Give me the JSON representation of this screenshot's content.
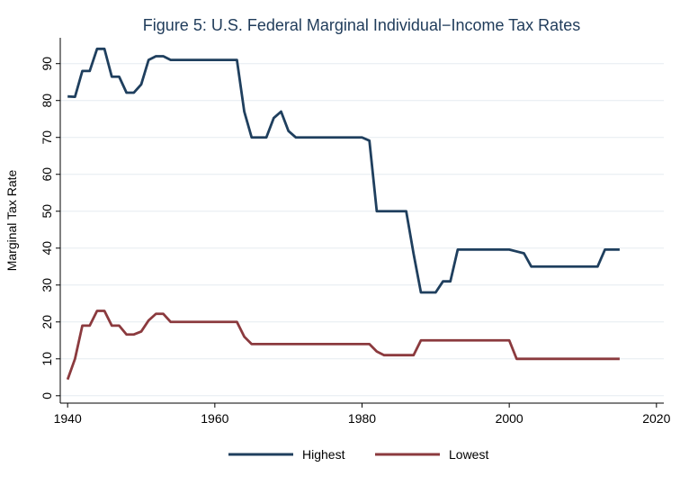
{
  "chart_data": {
    "type": "line",
    "title": "Figure 5: U.S. Federal Marginal Individual−Income Tax Rates",
    "xlabel": "",
    "ylabel": "Marginal Tax Rate",
    "xlim": [
      1939,
      2021
    ],
    "ylim": [
      -2,
      97
    ],
    "xticks": [
      1940,
      1960,
      1980,
      2000,
      2020
    ],
    "yticks": [
      0,
      10,
      20,
      30,
      40,
      50,
      60,
      70,
      80,
      90
    ],
    "grid": "horizontal",
    "legend_position": "bottom",
    "series": [
      {
        "name": "Highest",
        "color": "#1f3f5e",
        "points": [
          [
            1940,
            81.1
          ],
          [
            1941,
            81
          ],
          [
            1942,
            88
          ],
          [
            1943,
            88
          ],
          [
            1944,
            94
          ],
          [
            1945,
            94
          ],
          [
            1946,
            86.45
          ],
          [
            1947,
            86.45
          ],
          [
            1948,
            82.13
          ],
          [
            1949,
            82.13
          ],
          [
            1950,
            84.36
          ],
          [
            1951,
            91
          ],
          [
            1952,
            92
          ],
          [
            1953,
            92
          ],
          [
            1954,
            91
          ],
          [
            1963,
            91
          ],
          [
            1964,
            77
          ],
          [
            1965,
            70
          ],
          [
            1967,
            70
          ],
          [
            1968,
            75.25
          ],
          [
            1969,
            77
          ],
          [
            1970,
            71.75
          ],
          [
            1971,
            70
          ],
          [
            1980,
            70
          ],
          [
            1981,
            69.13
          ],
          [
            1982,
            50
          ],
          [
            1986,
            50
          ],
          [
            1987,
            38.5
          ],
          [
            1988,
            28
          ],
          [
            1990,
            28
          ],
          [
            1991,
            31
          ],
          [
            1992,
            31
          ],
          [
            1993,
            39.6
          ],
          [
            2000,
            39.6
          ],
          [
            2001,
            39.1
          ],
          [
            2002,
            38.6
          ],
          [
            2003,
            35
          ],
          [
            2012,
            35
          ],
          [
            2013,
            39.6
          ],
          [
            2015,
            39.6
          ]
        ]
      },
      {
        "name": "Lowest",
        "color": "#8b3a3e",
        "points": [
          [
            1940,
            4.4
          ],
          [
            1941,
            10
          ],
          [
            1942,
            19
          ],
          [
            1943,
            19
          ],
          [
            1944,
            23
          ],
          [
            1945,
            23
          ],
          [
            1946,
            19
          ],
          [
            1947,
            19
          ],
          [
            1948,
            16.6
          ],
          [
            1949,
            16.6
          ],
          [
            1950,
            17.4
          ],
          [
            1951,
            20.4
          ],
          [
            1952,
            22.2
          ],
          [
            1953,
            22.2
          ],
          [
            1954,
            20
          ],
          [
            1963,
            20
          ],
          [
            1964,
            16
          ],
          [
            1965,
            14
          ],
          [
            1981,
            14
          ],
          [
            1982,
            12
          ],
          [
            1983,
            11
          ],
          [
            1987,
            11
          ],
          [
            1988,
            15
          ],
          [
            2000,
            15
          ],
          [
            2001,
            10
          ],
          [
            2015,
            10
          ]
        ]
      }
    ]
  }
}
